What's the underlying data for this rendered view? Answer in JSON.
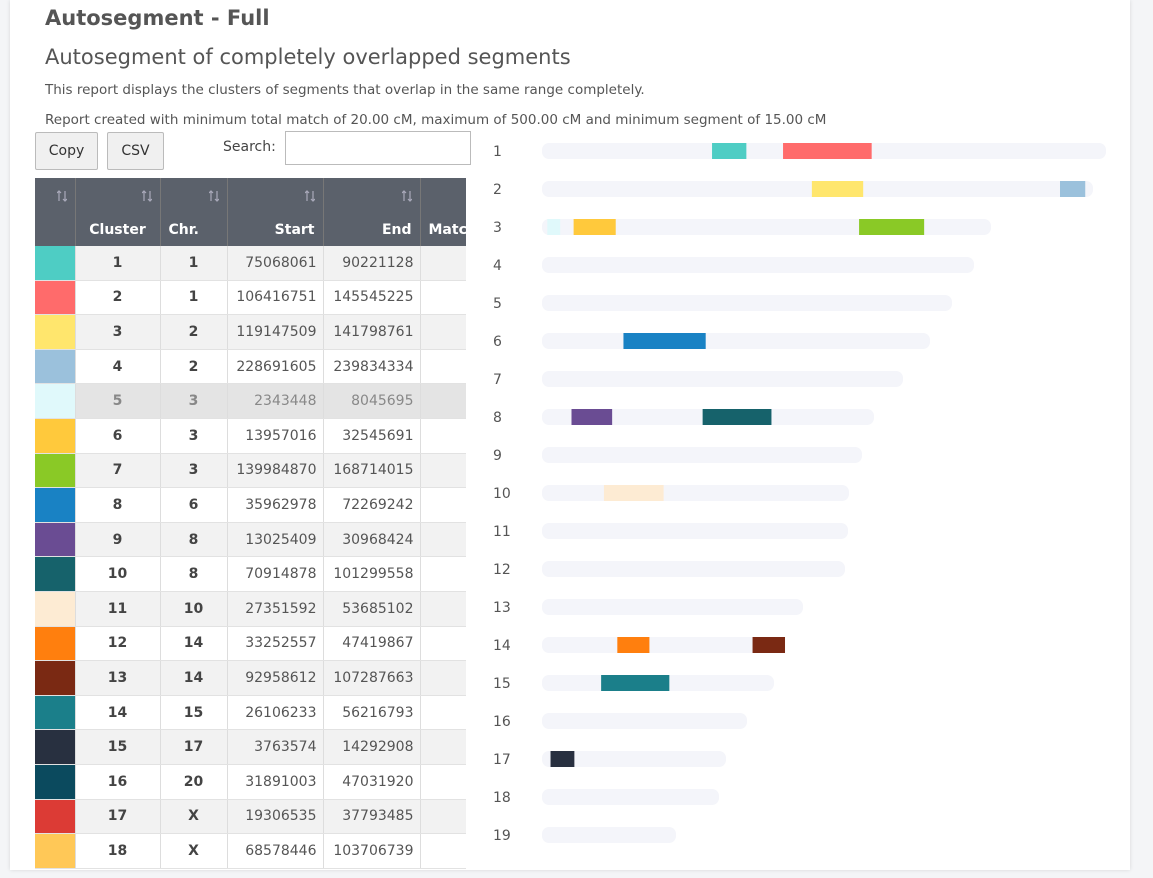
{
  "header": {
    "title": "Autosegment - Full",
    "subtitle": "Autosegment of completely overlapped segments",
    "description": "This report displays the clusters of segments that overlap in the same range completely.",
    "criteria": "Report created with minimum total match of 20.00 cM, maximum of 500.00 cM and minimum segment of 15.00 cM"
  },
  "buttons": [
    "Copy",
    "CSV"
  ],
  "search_label": "Search:",
  "table": {
    "columns": [
      "Cluster",
      "Chr.",
      "Start",
      "End",
      "Match"
    ],
    "rows": [
      [
        1,
        "1",
        75068061,
        90221128
      ],
      [
        2,
        "1",
        106416751,
        145545225
      ],
      [
        3,
        "2",
        119147509,
        141798761
      ],
      [
        4,
        "2",
        228691605,
        239834334
      ],
      [
        5,
        "3",
        2343448,
        8045695
      ],
      [
        6,
        "3",
        13957016,
        32545691
      ],
      [
        7,
        "3",
        139984870,
        168714015
      ],
      [
        8,
        "6",
        35962978,
        72269242
      ],
      [
        9,
        "8",
        13025409,
        30968424
      ],
      [
        10,
        "8",
        70914878,
        101299558
      ],
      [
        11,
        "10",
        27351592,
        53685102
      ],
      [
        12,
        "14",
        33252557,
        47419867
      ],
      [
        13,
        "14",
        92958612,
        107287663
      ],
      [
        14,
        "15",
        26106233,
        56216793
      ],
      [
        15,
        "17",
        3763574,
        14292908
      ],
      [
        16,
        "20",
        31891003,
        47031920
      ],
      [
        17,
        "X",
        19306535,
        37793485
      ],
      [
        18,
        "X",
        68578446,
        103706739
      ]
    ],
    "colors": [
      "#4ecdc4",
      "#ff6b6b",
      "#ffe66d",
      "#9bc1dc",
      "#e0f9fb",
      "#ffc93c",
      "#8ac926",
      "#1982c4",
      "#6a4c93",
      "#16626b",
      "#fdebd3",
      "#ff7f0e",
      "#7a2913",
      "#1b7f8a",
      "#283040",
      "#0b4a5e",
      "#dc3b35",
      "#ffc857"
    ]
  },
  "chromosome_labels": [
    "1",
    "2",
    "3",
    "4",
    "5",
    "6",
    "7",
    "8",
    "9",
    "10",
    "11",
    "12",
    "13",
    "14",
    "15",
    "16",
    "17",
    "18",
    "19"
  ]
}
